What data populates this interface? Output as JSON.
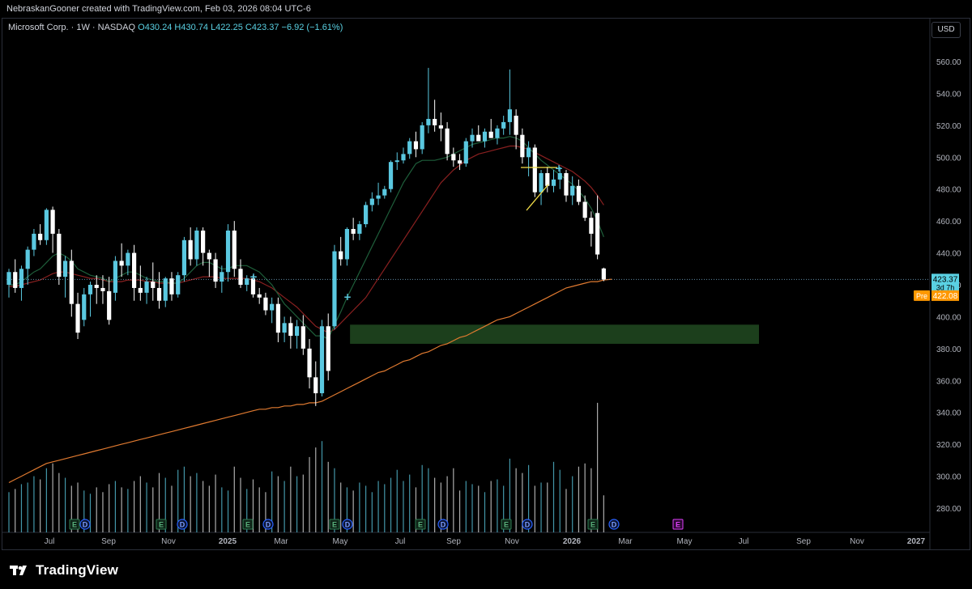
{
  "header": {
    "attribution": "NebraskanGooner created with TradingView.com, Feb 03, 2026 08:04 UTC-6"
  },
  "legend": {
    "symbol": "Microsoft Corp. · 1W · NASDAQ",
    "open": "O430.24",
    "high": "H430.74",
    "low": "L422.25",
    "close": "C423.37",
    "change": "−6.92 (−1.61%)"
  },
  "currency_button": "USD",
  "price_labels": {
    "last": "423.37",
    "countdown": "3d 7h",
    "pre_tag": "Pre",
    "pre_price": "422.08"
  },
  "brand": {
    "name": "TradingView"
  },
  "colors": {
    "up": "#5ac8e0",
    "down": "#ffffff",
    "ema_fast": "#1e5e3a",
    "ema_mid": "#8a2020",
    "ma_slow": "#e07a30",
    "zone": "#3e8c3e",
    "pre": "#ff9800",
    "last": "#5ad1e3"
  },
  "chart_data": {
    "type": "candlestick",
    "timeframe": "1W",
    "y_axis": {
      "ticks": [
        280,
        300,
        320,
        340,
        360,
        380,
        400,
        420,
        440,
        460,
        480,
        500,
        520,
        540,
        560
      ],
      "range": [
        272,
        566
      ]
    },
    "x_axis": {
      "ticks": [
        "Jul",
        "Sep",
        "Nov",
        "2025",
        "Mar",
        "May",
        "Jul",
        "Sep",
        "Nov",
        "2026",
        "Mar",
        "May",
        "Jul",
        "Sep",
        "Nov",
        "2027"
      ]
    },
    "candles": [
      {
        "o": 420,
        "h": 430,
        "l": 412,
        "c": 428
      },
      {
        "o": 428,
        "h": 436,
        "l": 415,
        "c": 418
      },
      {
        "o": 418,
        "h": 432,
        "l": 410,
        "c": 430
      },
      {
        "o": 430,
        "h": 444,
        "l": 420,
        "c": 442
      },
      {
        "o": 442,
        "h": 455,
        "l": 438,
        "c": 452
      },
      {
        "o": 452,
        "h": 458,
        "l": 445,
        "c": 448
      },
      {
        "o": 448,
        "h": 468,
        "l": 445,
        "c": 467
      },
      {
        "o": 467,
        "h": 469,
        "l": 440,
        "c": 452
      },
      {
        "o": 452,
        "h": 455,
        "l": 420,
        "c": 425
      },
      {
        "o": 425,
        "h": 438,
        "l": 412,
        "c": 435
      },
      {
        "o": 435,
        "h": 442,
        "l": 400,
        "c": 408
      },
      {
        "o": 408,
        "h": 415,
        "l": 386,
        "c": 390
      },
      {
        "o": 398,
        "h": 418,
        "l": 394,
        "c": 414
      },
      {
        "o": 414,
        "h": 422,
        "l": 400,
        "c": 420
      },
      {
        "o": 420,
        "h": 426,
        "l": 408,
        "c": 418
      },
      {
        "o": 418,
        "h": 426,
        "l": 408,
        "c": 416
      },
      {
        "o": 416,
        "h": 425,
        "l": 395,
        "c": 398
      },
      {
        "o": 415,
        "h": 438,
        "l": 410,
        "c": 435
      },
      {
        "o": 435,
        "h": 446,
        "l": 425,
        "c": 432
      },
      {
        "o": 432,
        "h": 442,
        "l": 426,
        "c": 440
      },
      {
        "o": 440,
        "h": 445,
        "l": 410,
        "c": 418
      },
      {
        "o": 418,
        "h": 432,
        "l": 410,
        "c": 415
      },
      {
        "o": 415,
        "h": 425,
        "l": 408,
        "c": 422
      },
      {
        "o": 422,
        "h": 434,
        "l": 410,
        "c": 418
      },
      {
        "o": 418,
        "h": 428,
        "l": 405,
        "c": 410
      },
      {
        "o": 410,
        "h": 425,
        "l": 406,
        "c": 424
      },
      {
        "o": 424,
        "h": 428,
        "l": 410,
        "c": 414
      },
      {
        "o": 414,
        "h": 428,
        "l": 412,
        "c": 426
      },
      {
        "o": 426,
        "h": 450,
        "l": 422,
        "c": 448
      },
      {
        "o": 448,
        "h": 456,
        "l": 432,
        "c": 436
      },
      {
        "o": 436,
        "h": 456,
        "l": 432,
        "c": 454
      },
      {
        "o": 454,
        "h": 456,
        "l": 432,
        "c": 440
      },
      {
        "o": 440,
        "h": 442,
        "l": 425,
        "c": 436
      },
      {
        "o": 436,
        "h": 440,
        "l": 418,
        "c": 422
      },
      {
        "o": 422,
        "h": 432,
        "l": 415,
        "c": 428
      },
      {
        "o": 428,
        "h": 458,
        "l": 422,
        "c": 454
      },
      {
        "o": 454,
        "h": 460,
        "l": 425,
        "c": 430
      },
      {
        "o": 430,
        "h": 436,
        "l": 418,
        "c": 420
      },
      {
        "o": 420,
        "h": 426,
        "l": 416,
        "c": 424
      },
      {
        "o": 424,
        "h": 426,
        "l": 412,
        "c": 414
      },
      {
        "o": 414,
        "h": 418,
        "l": 408,
        "c": 412
      },
      {
        "o": 412,
        "h": 415,
        "l": 401,
        "c": 404
      },
      {
        "o": 404,
        "h": 412,
        "l": 396,
        "c": 408
      },
      {
        "o": 408,
        "h": 412,
        "l": 384,
        "c": 390
      },
      {
        "o": 390,
        "h": 400,
        "l": 384,
        "c": 396
      },
      {
        "o": 396,
        "h": 400,
        "l": 380,
        "c": 388
      },
      {
        "o": 388,
        "h": 398,
        "l": 380,
        "c": 394
      },
      {
        "o": 394,
        "h": 401,
        "l": 376,
        "c": 380
      },
      {
        "o": 380,
        "h": 386,
        "l": 355,
        "c": 362
      },
      {
        "o": 362,
        "h": 372,
        "l": 344,
        "c": 352
      },
      {
        "o": 352,
        "h": 398,
        "l": 350,
        "c": 394
      },
      {
        "o": 394,
        "h": 402,
        "l": 360,
        "c": 366
      },
      {
        "o": 394,
        "h": 445,
        "l": 392,
        "c": 441
      },
      {
        "o": 441,
        "h": 450,
        "l": 432,
        "c": 436
      },
      {
        "o": 436,
        "h": 456,
        "l": 432,
        "c": 455
      },
      {
        "o": 455,
        "h": 462,
        "l": 448,
        "c": 452
      },
      {
        "o": 452,
        "h": 460,
        "l": 448,
        "c": 458
      },
      {
        "o": 458,
        "h": 472,
        "l": 456,
        "c": 470
      },
      {
        "o": 470,
        "h": 478,
        "l": 466,
        "c": 474
      },
      {
        "o": 474,
        "h": 484,
        "l": 470,
        "c": 476
      },
      {
        "o": 476,
        "h": 482,
        "l": 474,
        "c": 480
      },
      {
        "o": 480,
        "h": 498,
        "l": 478,
        "c": 497
      },
      {
        "o": 497,
        "h": 503,
        "l": 492,
        "c": 498
      },
      {
        "o": 498,
        "h": 506,
        "l": 496,
        "c": 502
      },
      {
        "o": 502,
        "h": 512,
        "l": 499,
        "c": 510
      },
      {
        "o": 510,
        "h": 516,
        "l": 500,
        "c": 505
      },
      {
        "o": 505,
        "h": 522,
        "l": 502,
        "c": 520
      },
      {
        "o": 520,
        "h": 556,
        "l": 515,
        "c": 524
      },
      {
        "o": 524,
        "h": 536,
        "l": 516,
        "c": 520
      },
      {
        "o": 520,
        "h": 528,
        "l": 510,
        "c": 518
      },
      {
        "o": 518,
        "h": 522,
        "l": 498,
        "c": 502
      },
      {
        "o": 502,
        "h": 506,
        "l": 494,
        "c": 498
      },
      {
        "o": 498,
        "h": 502,
        "l": 492,
        "c": 496
      },
      {
        "o": 496,
        "h": 512,
        "l": 494,
        "c": 510
      },
      {
        "o": 510,
        "h": 518,
        "l": 506,
        "c": 514
      },
      {
        "o": 514,
        "h": 520,
        "l": 510,
        "c": 510
      },
      {
        "o": 510,
        "h": 518,
        "l": 506,
        "c": 516
      },
      {
        "o": 516,
        "h": 524,
        "l": 512,
        "c": 512
      },
      {
        "o": 512,
        "h": 520,
        "l": 508,
        "c": 518
      },
      {
        "o": 518,
        "h": 526,
        "l": 514,
        "c": 522
      },
      {
        "o": 522,
        "h": 555,
        "l": 514,
        "c": 530
      },
      {
        "o": 526,
        "h": 530,
        "l": 505,
        "c": 514
      },
      {
        "o": 514,
        "h": 518,
        "l": 496,
        "c": 500
      },
      {
        "o": 500,
        "h": 510,
        "l": 488,
        "c": 506
      },
      {
        "o": 506,
        "h": 508,
        "l": 475,
        "c": 478
      },
      {
        "o": 478,
        "h": 492,
        "l": 470,
        "c": 490
      },
      {
        "o": 490,
        "h": 494,
        "l": 478,
        "c": 482
      },
      {
        "o": 482,
        "h": 492,
        "l": 478,
        "c": 486
      },
      {
        "o": 486,
        "h": 494,
        "l": 480,
        "c": 490
      },
      {
        "o": 490,
        "h": 492,
        "l": 472,
        "c": 476
      },
      {
        "o": 476,
        "h": 488,
        "l": 470,
        "c": 482
      },
      {
        "o": 482,
        "h": 486,
        "l": 470,
        "c": 472
      },
      {
        "o": 472,
        "h": 476,
        "l": 460,
        "c": 462
      },
      {
        "o": 462,
        "h": 466,
        "l": 444,
        "c": 452
      },
      {
        "o": 465,
        "h": 476,
        "l": 436,
        "c": 439
      },
      {
        "o": 430.24,
        "h": 430.74,
        "l": 422.25,
        "c": 423.37
      }
    ],
    "volume": [
      290,
      292,
      295,
      296,
      300,
      298,
      305,
      308,
      302,
      299,
      294,
      296,
      291,
      289,
      293,
      290,
      295,
      297,
      293,
      292,
      297,
      300,
      296,
      293,
      302,
      299,
      294,
      304,
      306,
      300,
      302,
      297,
      294,
      301,
      293,
      291,
      306,
      299,
      292,
      298,
      293,
      290,
      303,
      300,
      297,
      306,
      300,
      301,
      312,
      318,
      322,
      309,
      305,
      296,
      293,
      291,
      296,
      294,
      290,
      297,
      295,
      299,
      304,
      297,
      301,
      293,
      307,
      305,
      299,
      296,
      300,
      305,
      291,
      297,
      295,
      294,
      290,
      297,
      298,
      294,
      311,
      305,
      302,
      307,
      294,
      296,
      296,
      309,
      304,
      292,
      300,
      306,
      308,
      305,
      346,
      288
    ],
    "volume_scale_max_price": 346,
    "zone": {
      "low": 383,
      "high": 395,
      "from_index": 55,
      "to_index": 150
    },
    "ema_fast": [
      420,
      420,
      422,
      425,
      428,
      430,
      434,
      438,
      440,
      438,
      435,
      430,
      428,
      426,
      425,
      424,
      422,
      424,
      426,
      428,
      428,
      426,
      424,
      423,
      422,
      422,
      421,
      421,
      424,
      428,
      432,
      434,
      434,
      432,
      430,
      430,
      432,
      432,
      432,
      430,
      428,
      424,
      420,
      414,
      408,
      404,
      400,
      396,
      392,
      388,
      388,
      386,
      395,
      403,
      412,
      420,
      428,
      436,
      444,
      452,
      460,
      468,
      476,
      484,
      490,
      496,
      498,
      498,
      498,
      499,
      500,
      502,
      504,
      506,
      508,
      509,
      510,
      511,
      512,
      512,
      513,
      512,
      510,
      506,
      502,
      498,
      495,
      492,
      489,
      486,
      483,
      479,
      474,
      468,
      460,
      450
    ],
    "ema_mid": [
      419,
      419,
      420,
      421,
      422,
      423,
      425,
      427,
      428,
      428,
      427,
      426,
      425,
      424,
      424,
      423,
      422,
      422,
      422,
      423,
      423,
      423,
      422,
      422,
      421,
      421,
      421,
      421,
      422,
      423,
      424,
      425,
      425,
      425,
      424,
      424,
      424,
      424,
      424,
      423,
      422,
      420,
      418,
      415,
      412,
      409,
      406,
      402,
      398,
      394,
      392,
      390,
      392,
      396,
      400,
      404,
      408,
      412,
      418,
      424,
      430,
      436,
      442,
      448,
      454,
      460,
      466,
      472,
      478,
      484,
      488,
      492,
      495,
      498,
      500,
      502,
      503,
      504,
      505,
      506,
      507,
      507,
      506,
      505,
      503,
      501,
      499,
      497,
      495,
      493,
      491,
      488,
      485,
      481,
      476,
      470
    ],
    "ma_slow": [
      296,
      298,
      300,
      302,
      304,
      306,
      308,
      309,
      310,
      311,
      312,
      313,
      314,
      315,
      316,
      317,
      318,
      319,
      320,
      321,
      322,
      323,
      324,
      325,
      326,
      327,
      328,
      329,
      330,
      331,
      332,
      333,
      334,
      335,
      336,
      337,
      338,
      339,
      340,
      341,
      342,
      342,
      343,
      343,
      344,
      344,
      345,
      345,
      346,
      346,
      347,
      349,
      351,
      353,
      355,
      357,
      359,
      361,
      363,
      365,
      366,
      368,
      370,
      372,
      373,
      375,
      377,
      378,
      380,
      382,
      383,
      385,
      387,
      388,
      390,
      392,
      394,
      396,
      398,
      399,
      400,
      402,
      404,
      406,
      408,
      410,
      412,
      414,
      416,
      418,
      419,
      420,
      421,
      422,
      422,
      423
    ]
  }
}
